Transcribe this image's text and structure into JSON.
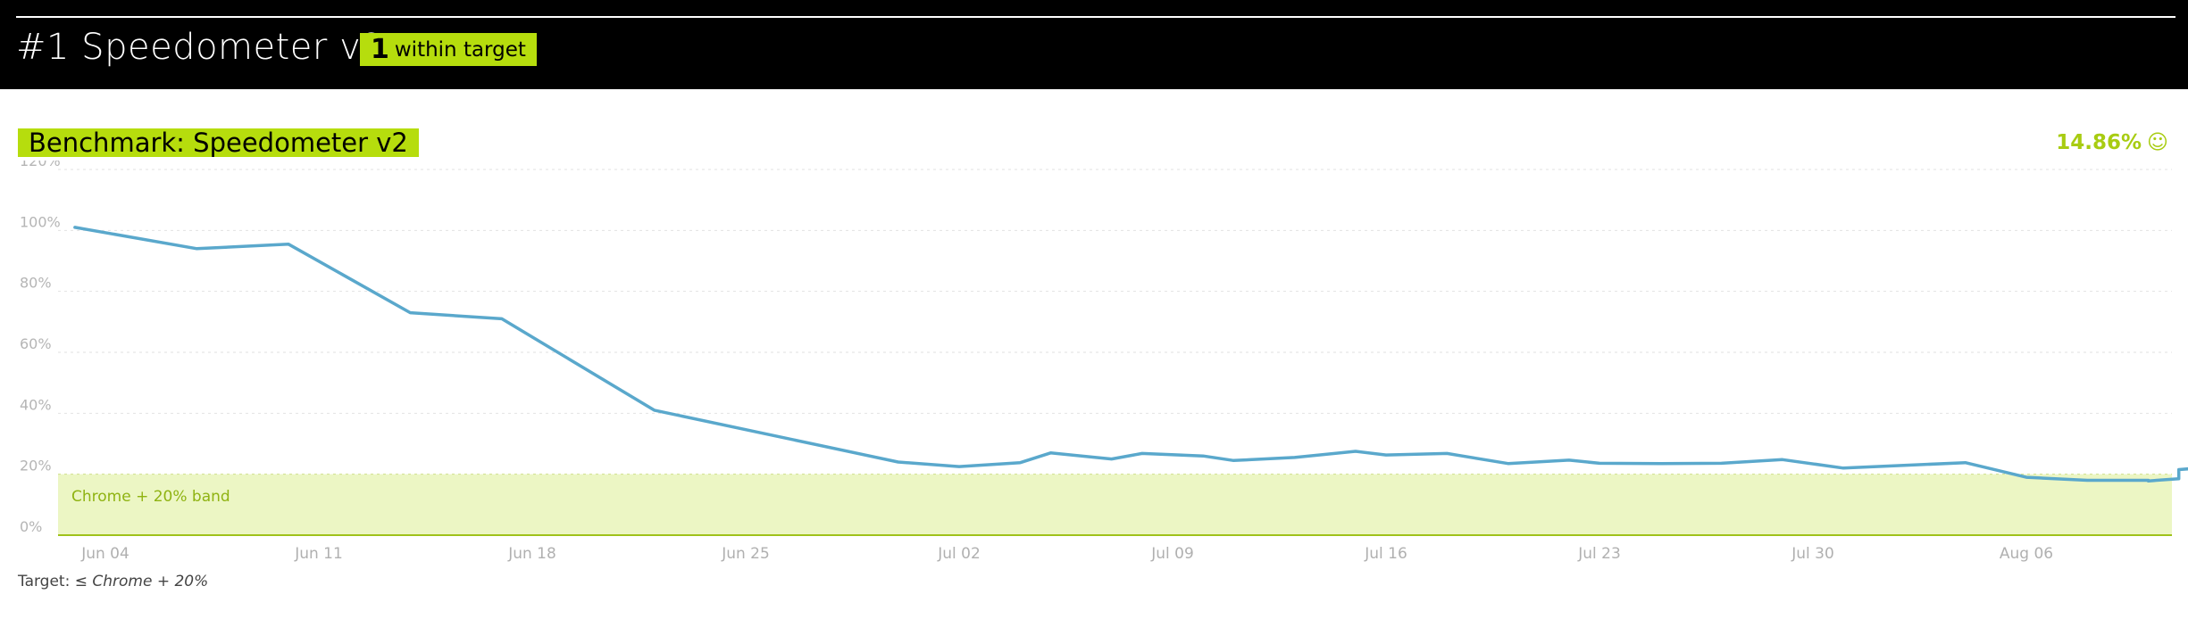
{
  "header": {
    "title": "#1 Speedometer v2",
    "badge_count": "1",
    "badge_label": "within target"
  },
  "benchmark": {
    "title": "Benchmark: Speedometer v2",
    "score": "14.86%",
    "score_icon": "smiley-face-icon"
  },
  "footnote": {
    "prefix": "Target: ≤ ",
    "value": "Chrome + 20%"
  },
  "colors": {
    "accent": "#b6dd0d",
    "score": "#a8cc12",
    "line": "#5aa8cc",
    "band": "#ecf6c4"
  },
  "chart_data": {
    "type": "line",
    "title": "Benchmark: Speedometer v2",
    "xlabel": "",
    "ylabel": "",
    "ylim": [
      0,
      120
    ],
    "y_ticks": [
      "0%",
      "20%",
      "40%",
      "60%",
      "80%",
      "100%",
      "120%"
    ],
    "x_ticks": [
      "Jun 04",
      "Jun 11",
      "Jun 18",
      "Jun 25",
      "Jul 02",
      "Jul 09",
      "Jul 16",
      "Jul 23",
      "Jul 30",
      "Aug 06"
    ],
    "grid": true,
    "band": {
      "label": "Chrome + 20% band",
      "from": 0,
      "to": 20
    },
    "series": [
      {
        "points": [
          [
            "2018-06-03",
            101
          ],
          [
            "2018-06-07",
            94
          ],
          [
            "2018-06-10",
            95.5
          ],
          [
            "2018-06-14",
            73
          ],
          [
            "2018-06-17",
            71
          ],
          [
            "2018-06-22",
            41
          ],
          [
            "2018-06-30",
            24
          ],
          [
            "2018-07-02",
            22.5
          ],
          [
            "2018-07-04",
            23.8
          ],
          [
            "2018-07-05",
            27
          ],
          [
            "2018-07-07",
            25
          ],
          [
            "2018-07-08",
            26.8
          ],
          [
            "2018-07-10",
            26
          ],
          [
            "2018-07-11",
            24.5
          ],
          [
            "2018-07-13",
            25.5
          ],
          [
            "2018-07-15",
            27.5
          ],
          [
            "2018-07-16",
            26.3
          ],
          [
            "2018-07-18",
            26.8
          ],
          [
            "2018-07-20",
            23.5
          ],
          [
            "2018-07-22",
            24.6
          ],
          [
            "2018-07-23",
            23.6
          ],
          [
            "2018-07-25",
            23.5
          ],
          [
            "2018-07-27",
            23.6
          ],
          [
            "2018-07-29",
            24.8
          ],
          [
            "2018-07-31",
            22
          ],
          [
            "2018-08-04",
            23.8
          ],
          [
            "2018-08-06",
            19
          ],
          [
            "2018-08-08",
            18
          ],
          [
            "2018-08-10",
            18
          ],
          [
            "2018-08-10",
            17.8
          ],
          [
            "2018-08-11",
            18.5
          ],
          [
            "2018-08-11",
            21.5
          ],
          [
            "2018-08-11",
            21.5
          ],
          [
            "2018-08-12",
            22.3
          ],
          [
            "2018-08-12",
            22.3
          ],
          [
            "2018-08-12",
            17.5
          ],
          [
            "2018-08-13",
            17.5
          ],
          [
            "2018-08-13",
            15
          ],
          [
            "2018-08-13",
            15
          ]
        ]
      }
    ]
  }
}
